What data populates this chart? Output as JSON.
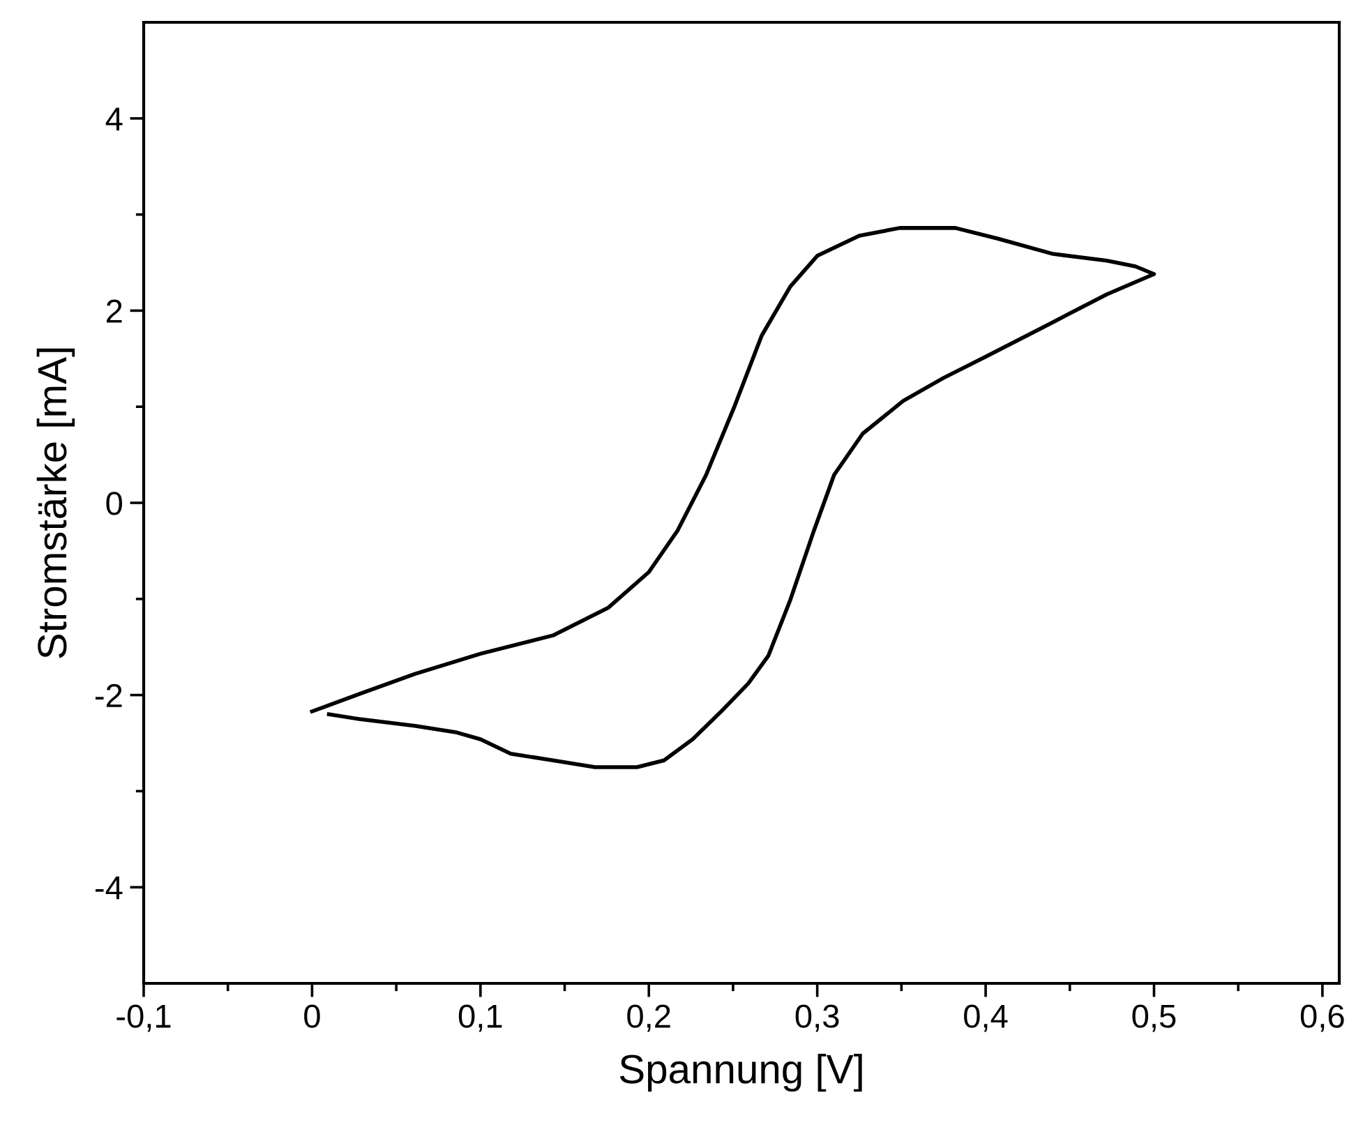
{
  "chart_data": {
    "type": "line",
    "xlabel": "Spannung [V]",
    "ylabel": "Stromstärke [mA]",
    "xlim": [
      -0.1,
      0.61
    ],
    "ylim": [
      -5,
      5
    ],
    "xticks": [
      {
        "value": -0.1,
        "label": "-0,1"
      },
      {
        "value": -0.05,
        "label": null
      },
      0,
      {
        "value": 0.05,
        "label": null
      },
      {
        "value": 0.1,
        "label": "0,1"
      },
      {
        "value": 0.15,
        "label": null
      },
      {
        "value": 0.2,
        "label": "0,2"
      },
      {
        "value": 0.25,
        "label": null
      },
      {
        "value": 0.3,
        "label": "0,3"
      },
      {
        "value": 0.35,
        "label": null
      },
      {
        "value": 0.4,
        "label": "0,4"
      },
      {
        "value": 0.45,
        "label": null
      },
      {
        "value": 0.5,
        "label": "0,5"
      },
      {
        "value": 0.55,
        "label": null
      },
      {
        "value": 0.6,
        "label": "0,6"
      }
    ],
    "yticks": [
      {
        "value": -4,
        "label": "-4"
      },
      {
        "value": -3,
        "label": null
      },
      {
        "value": -2,
        "label": "-2"
      },
      {
        "value": -1,
        "label": null
      },
      0,
      {
        "value": 1,
        "label": null
      },
      2,
      {
        "value": 3,
        "label": null
      },
      4
    ],
    "grid": false,
    "legend": false,
    "marker": "none",
    "line_style": "solid",
    "series": [
      {
        "color": "#000000",
        "x": [
          0,
          0.028,
          0.061,
          0.1,
          0.143,
          0.176,
          0.2,
          0.217,
          0.234,
          0.251,
          0.267,
          0.284,
          0.3,
          0.325,
          0.349,
          0.382,
          0.407,
          0.44,
          0.472,
          0.489,
          0.5,
          0.472,
          0.44,
          0.4,
          0.375,
          0.351,
          0.327,
          0.31,
          0.298,
          0.284,
          0.271,
          0.259,
          0.243,
          0.226,
          0.209,
          0.193,
          0.168,
          0.143,
          0.118,
          0.1,
          0.086,
          0.061,
          0.028,
          0.01
        ],
        "values": [
          -2.17,
          -1.99,
          -1.78,
          -1.57,
          -1.38,
          -1.09,
          -0.72,
          -0.29,
          0.29,
          1.01,
          1.74,
          2.25,
          2.57,
          2.78,
          2.86,
          2.86,
          2.75,
          2.59,
          2.52,
          2.46,
          2.38,
          2.17,
          1.88,
          1.52,
          1.3,
          1.06,
          0.72,
          0.29,
          -0.29,
          -1.01,
          -1.59,
          -1.88,
          -2.17,
          -2.46,
          -2.68,
          -2.75,
          -2.75,
          -2.68,
          -2.61,
          -2.46,
          -2.39,
          -2.32,
          -2.25,
          -2.2
        ]
      }
    ]
  }
}
